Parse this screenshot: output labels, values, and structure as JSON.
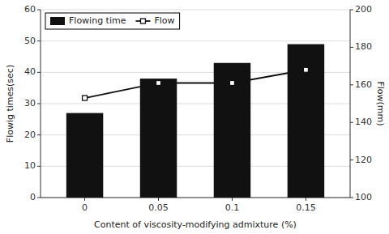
{
  "chart_data": {
    "type": "bar",
    "xlabel": "Content of viscosity-modifying admixture (%)",
    "ylabel": "Flowig times(sec)",
    "y2label": "Flow(mm)",
    "categories": [
      "0",
      "0.05",
      "0.1",
      "0.15"
    ],
    "series": [
      {
        "name": "Flowing time",
        "type": "bar",
        "color": "#111111",
        "values": [
          27,
          38,
          43,
          49
        ]
      },
      {
        "name": "Flow",
        "type": "line",
        "color": "#111111",
        "marker": "square",
        "axis": "y2",
        "values": [
          153,
          161,
          161,
          168
        ]
      }
    ],
    "ylim": [
      0,
      60
    ],
    "yticks": [
      0,
      10,
      20,
      30,
      40,
      50,
      60
    ],
    "y2lim": [
      100,
      200
    ],
    "y2ticks": [
      100,
      120,
      140,
      160,
      180,
      200
    ],
    "grid": true,
    "legend": "upper left"
  }
}
